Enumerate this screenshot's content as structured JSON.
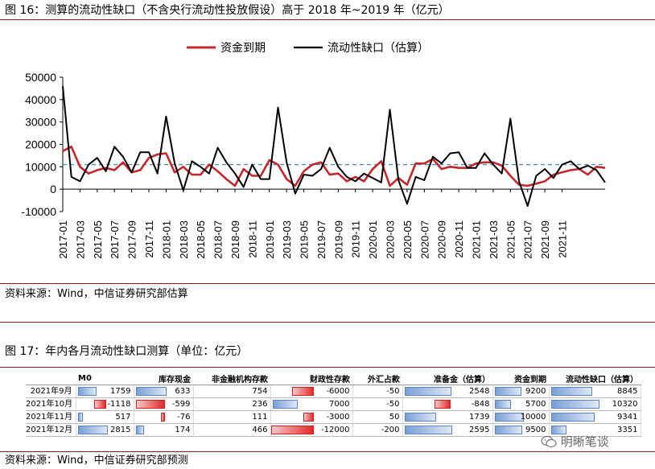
{
  "figure16": {
    "title": "图 16：测算的流动性缺口（不含央行流动性投放假设）高于 2018 年~2019 年（亿元）",
    "source": "资料来源：Wind，中信证券研究部估算"
  },
  "figure17": {
    "title": "图 17：年内各月流动性缺口测算（单位：亿元）",
    "source": "资料来源：Wind，中信证券研究部预测"
  },
  "watermark": "明晰笔谈",
  "chart_data": {
    "type": "line",
    "legend_position": "top-center",
    "ylim": [
      -10000,
      50000
    ],
    "yticks": [
      -10000,
      0,
      10000,
      20000,
      30000,
      40000,
      50000
    ],
    "reference_line": 11000,
    "reference_line_color": "#4f8fc0",
    "xtick_labels": [
      "2017-01",
      "2017-03",
      "2017-05",
      "2017-07",
      "2017-09",
      "2017-11",
      "2018-01",
      "2018-03",
      "2018-05",
      "2018-07",
      "2018-09",
      "2018-11",
      "2019-01",
      "2019-03",
      "2019-05",
      "2019-07",
      "2019-09",
      "2019-11",
      "2020-01",
      "2020-03",
      "2020-05",
      "2020-07",
      "2020-09",
      "2020-11",
      "2021-01",
      "2021-03",
      "2021-05",
      "2021-07",
      "2021-09",
      "2021-11"
    ],
    "series": [
      {
        "name": "资金到期",
        "color": "#c0282d",
        "values": [
          17000,
          19000,
          10000,
          7000,
          8500,
          9500,
          8500,
          12000,
          7500,
          8500,
          14000,
          15500,
          16000,
          7500,
          10000,
          6500,
          6500,
          11000,
          8000,
          4500,
          1500,
          9000,
          6000,
          6000,
          13000,
          11000,
          4500,
          1500,
          8000,
          11000,
          12000,
          6500,
          7000,
          3500,
          5500,
          3500,
          9000,
          12500,
          1500,
          5000,
          2000,
          11500,
          11500,
          13500,
          9000,
          10000,
          9500,
          9500,
          11500,
          12000,
          12000,
          10500,
          6000,
          2000,
          1500,
          2500,
          3500,
          6500,
          7500,
          8500,
          9000,
          6500,
          10000,
          9500
        ]
      },
      {
        "name": "流动性缺口（估算）",
        "color": "#000000",
        "values": [
          46000,
          5500,
          3500,
          11000,
          14000,
          8000,
          19000,
          14500,
          7500,
          16500,
          16500,
          7000,
          32500,
          11500,
          -500,
          12500,
          10000,
          7000,
          18500,
          12000,
          7000,
          1000,
          11000,
          4500,
          4500,
          36500,
          12000,
          -2000,
          6500,
          6000,
          9000,
          18500,
          10000,
          5500,
          3500,
          7000,
          5000,
          3000,
          35500,
          4000,
          -6500,
          5500,
          4000,
          14500,
          11500,
          16000,
          16500,
          9500,
          9500,
          16000,
          11000,
          7000,
          31500,
          3500,
          -7500,
          6000,
          9000,
          5000,
          11000,
          12500,
          9000,
          10500,
          8500,
          3000
        ]
      }
    ]
  },
  "table": {
    "headers": [
      "M0",
      "库存现金",
      "非金融机构存款",
      "财政性存款",
      "外汇占款",
      "准备金（估算）",
      "资金到期",
      "流动性缺口（估算）"
    ],
    "rows": [
      {
        "label": "2021年9月",
        "cells": [
          "1759",
          "633",
          "754",
          "-6000",
          "-50",
          "2548",
          "9200",
          "8845"
        ]
      },
      {
        "label": "2021年10月",
        "cells": [
          "-1118",
          "-599",
          "236",
          "7000",
          "-50",
          "-848",
          "5700",
          "10320"
        ]
      },
      {
        "label": "2021年11月",
        "cells": [
          "517",
          "-76",
          "111",
          "-3000",
          "50",
          "1739",
          "10000",
          "9341"
        ]
      },
      {
        "label": "2021年12月",
        "cells": [
          "2815",
          "174",
          "466",
          "-12000",
          "-200",
          "2595",
          "9500",
          "3351"
        ]
      }
    ],
    "databars": [
      {
        "col": 1,
        "max": 2815,
        "values": [
          1759,
          -1118,
          517,
          2815
        ]
      },
      {
        "col": 2,
        "max": 633,
        "values": [
          633,
          -599,
          -76,
          174
        ]
      },
      {
        "col": 4,
        "max": 12000,
        "values": [
          -6000,
          7000,
          -3000,
          -12000
        ]
      },
      {
        "col": 6,
        "max": 2595,
        "values": [
          2548,
          -848,
          1739,
          2595
        ]
      },
      {
        "col": 7,
        "max": 10000,
        "values": [
          9200,
          5700,
          10000,
          9500
        ]
      },
      {
        "col": 8,
        "max": 10320,
        "values": [
          8845,
          10320,
          9341,
          3351
        ]
      }
    ]
  }
}
